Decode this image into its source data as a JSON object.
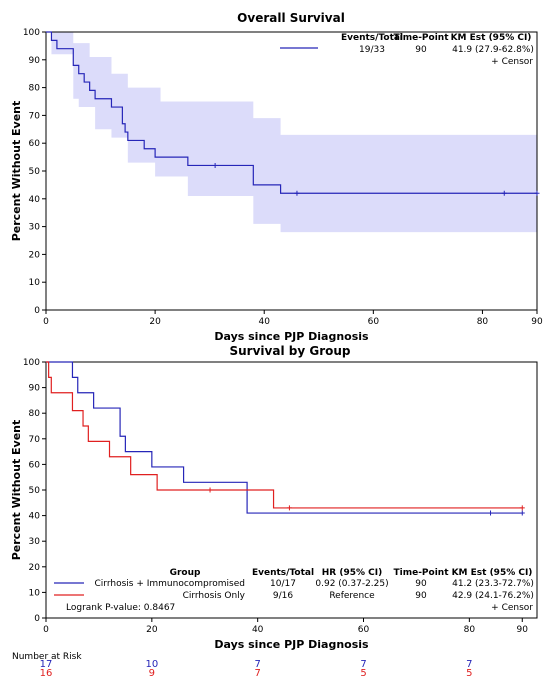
{
  "colors": {
    "overall": "#2626b8",
    "immuno": "#2626b8",
    "cirrhosis": "#e02020",
    "band": "#dcdcfa"
  },
  "chart_data": [
    {
      "type": "line",
      "title": "Overall Survival",
      "xlabel": "Days since PJP Diagnosis",
      "ylabel": "Percent Without Event",
      "xlim": [
        0,
        90
      ],
      "ylim": [
        0,
        100
      ],
      "x_ticks": [
        0,
        20,
        40,
        60,
        80,
        90
      ],
      "y_ticks": [
        0,
        10,
        20,
        30,
        40,
        50,
        60,
        70,
        80,
        90,
        100
      ],
      "stat_headers": [
        "Events/Total",
        "Time-Point",
        "KM Est (95% CI)"
      ],
      "stats": [
        {
          "events_total": "19/33",
          "time_point": "90",
          "km_est": "41.9 (27.9-62.8%)"
        }
      ],
      "censor_label": "+ Censor",
      "series": [
        {
          "step": [
            [
              0,
              100
            ],
            [
              1,
              97
            ],
            [
              2,
              94
            ],
            [
              5,
              88
            ],
            [
              6,
              85
            ],
            [
              7,
              82
            ],
            [
              8,
              79
            ],
            [
              9,
              76
            ],
            [
              12,
              73
            ],
            [
              14,
              67
            ],
            [
              14.5,
              64
            ],
            [
              15,
              61
            ],
            [
              18,
              58
            ],
            [
              20,
              55
            ],
            [
              26,
              52
            ],
            [
              38,
              45
            ],
            [
              43,
              42
            ],
            [
              90,
              42
            ]
          ],
          "upper": [
            [
              0,
              100
            ],
            [
              5,
              96
            ],
            [
              8,
              91
            ],
            [
              12,
              85
            ],
            [
              15,
              80
            ],
            [
              21,
              75
            ],
            [
              38,
              69
            ],
            [
              43,
              63
            ],
            [
              90,
              63
            ]
          ],
          "lower": [
            [
              0,
              100
            ],
            [
              1,
              92
            ],
            [
              5,
              76
            ],
            [
              6,
              73
            ],
            [
              9,
              65
            ],
            [
              12,
              62
            ],
            [
              15,
              53
            ],
            [
              20,
              48
            ],
            [
              26,
              41
            ],
            [
              38,
              31
            ],
            [
              43,
              28
            ],
            [
              90,
              28
            ]
          ],
          "censor": [
            31,
            46,
            84,
            90
          ]
        }
      ]
    },
    {
      "type": "line",
      "title": "Survival by Group",
      "xlabel": "Days since PJP Diagnosis",
      "ylabel": "Percent Without Event",
      "xlim": [
        0,
        90
      ],
      "ylim": [
        0,
        100
      ],
      "x_ticks": [
        0,
        20,
        40,
        60,
        80,
        90
      ],
      "y_ticks": [
        0,
        10,
        20,
        30,
        40,
        50,
        60,
        70,
        80,
        90,
        100
      ],
      "table_headers": [
        "Group",
        "Events/Total",
        "HR (95% CI)",
        "Time-Point",
        "KM Est (95% CI)"
      ],
      "censor_label": "+ Censor",
      "logrank": "Logrank P-value: 0.8467",
      "series": [
        {
          "name": "Cirrhosis + Immunocompromised",
          "events_total": "10/17",
          "hr": "0.92 (0.37-2.25)",
          "time_point": "90",
          "km_est": "41.2 (23.3-72.7%)",
          "step": [
            [
              0,
              100
            ],
            [
              5,
              94
            ],
            [
              6,
              88
            ],
            [
              9,
              82
            ],
            [
              14,
              71
            ],
            [
              15,
              65
            ],
            [
              20,
              59
            ],
            [
              26,
              53
            ],
            [
              38,
              41
            ],
            [
              90,
              41
            ]
          ],
          "censor": [
            84,
            90
          ]
        },
        {
          "name": "Cirrhosis Only",
          "events_total": "9/16",
          "hr": "Reference",
          "time_point": "90",
          "km_est": "42.9 (24.1-76.2%)",
          "step": [
            [
              0,
              100
            ],
            [
              0.5,
              94
            ],
            [
              1,
              88
            ],
            [
              5,
              81
            ],
            [
              7,
              75
            ],
            [
              8,
              69
            ],
            [
              12,
              63
            ],
            [
              16,
              56
            ],
            [
              21,
              50
            ],
            [
              43,
              43
            ],
            [
              90,
              43
            ]
          ],
          "censor": [
            31,
            46,
            90
          ]
        }
      ],
      "risk_title": "Number at Risk",
      "risk_x": [
        0,
        20,
        40,
        60,
        80
      ],
      "risk_rows": [
        {
          "values": [
            "17",
            "10",
            "7",
            "7",
            "7"
          ]
        },
        {
          "values": [
            "16",
            "9",
            "7",
            "5",
            "5"
          ]
        }
      ]
    }
  ]
}
